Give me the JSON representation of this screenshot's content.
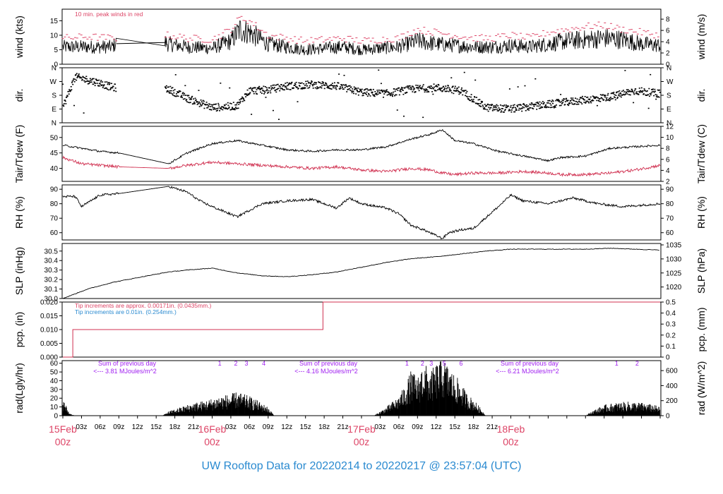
{
  "footer": {
    "title": "UW Rooftop Data for 20220214  to  20220217 @ 23:57:04  (UTC)"
  },
  "colors": {
    "accent": "#dd4466",
    "blue": "#2a8ad0",
    "purple": "#a020f0",
    "trace": "#000000",
    "red_trace": "#d03050"
  },
  "x_axis": {
    "hour_ticks": [
      "03z",
      "06z",
      "09z",
      "12z",
      "15z",
      "18z",
      "21z",
      "03z",
      "06z",
      "09z",
      "12z",
      "15z",
      "18z",
      "21z",
      "03z",
      "06z",
      "09z",
      "12z",
      "15z",
      "18z",
      "21z"
    ],
    "day_ticks": [
      {
        "date": "15Feb",
        "hour": "00z"
      },
      {
        "date": "16Feb",
        "hour": "00z"
      },
      {
        "date": "17Feb",
        "hour": "00z"
      },
      {
        "date": "18Feb",
        "hour": "00z"
      }
    ]
  },
  "chart_data": [
    {
      "type": "line",
      "id": "wind",
      "ylabel": "wind (kts)",
      "ylabel_right": "wind (m/s)",
      "ylim": [
        0,
        19
      ],
      "yticks": [
        0,
        5,
        10,
        15
      ],
      "ylim_right": [
        0,
        9.77
      ],
      "yticks_right": [
        0,
        2,
        4,
        6,
        8
      ],
      "annotation": "10 min. peak winds in red",
      "series": [
        {
          "name": "wind",
          "x_hours": [
            0,
            4,
            8,
            8.5,
            16.5,
            17,
            20,
            24,
            27,
            28.5,
            30,
            33,
            36,
            39,
            42,
            45,
            48,
            51,
            54,
            57,
            60,
            63,
            66,
            69,
            72,
            75,
            78,
            81,
            84,
            87,
            90,
            93,
            96
          ],
          "values": [
            6,
            6,
            6,
            7.2,
            7.5,
            7,
            6,
            5.5,
            8,
            12,
            11,
            7,
            6,
            5,
            5.5,
            6,
            5,
            5.5,
            6,
            8,
            7,
            6.5,
            6,
            6,
            6.5,
            6,
            7,
            8,
            8.5,
            9,
            8.5,
            7,
            6.5
          ]
        },
        {
          "name": "10 min. peak winds",
          "x_hours": [
            0,
            4,
            8,
            17,
            20,
            24,
            27,
            28.5,
            30,
            33,
            36,
            39,
            42,
            45,
            48,
            51,
            54,
            57,
            60,
            63,
            66,
            69,
            72,
            75,
            78,
            81,
            84,
            87,
            90,
            93,
            96
          ],
          "values": [
            9,
            9.5,
            9,
            10,
            9,
            8.5,
            12,
            16,
            15,
            10,
            9,
            8,
            8.5,
            9,
            8,
            8.5,
            9,
            12,
            11,
            10,
            9,
            9,
            10,
            9,
            11,
            12,
            13,
            13.5,
            12,
            11,
            10
          ]
        }
      ]
    },
    {
      "type": "scatter",
      "id": "dir",
      "ylabel": "dir.",
      "ylabel_right": "dir.",
      "ylim": [
        0,
        360
      ],
      "ytick_labels": [
        "N",
        "E",
        "S",
        "W",
        "N"
      ],
      "ytick_values": [
        0,
        90,
        180,
        270,
        360
      ],
      "series": [
        {
          "name": "direction (deg)",
          "x_hours": [
            0,
            2,
            4,
            6,
            8,
            17,
            20,
            24,
            28,
            30,
            33,
            36,
            40,
            44,
            48,
            52,
            56,
            60,
            64,
            68,
            72,
            76,
            80,
            84,
            88,
            92,
            96
          ],
          "values": [
            100,
            300,
            280,
            260,
            230,
            220,
            160,
            100,
            110,
            210,
            215,
            240,
            250,
            240,
            200,
            190,
            220,
            230,
            210,
            100,
            90,
            110,
            130,
            150,
            170,
            210,
            190
          ]
        }
      ]
    },
    {
      "type": "line",
      "id": "temp",
      "ylabel": "Tair/Tdew (F)",
      "ylabel_right": "Tair/Tdew (C)",
      "ylim": [
        35.8,
        53.6
      ],
      "yticks": [
        40,
        45,
        50
      ],
      "ylim_right": [
        2,
        12
      ],
      "yticks_right": [
        2,
        4,
        6,
        8,
        10,
        12
      ],
      "series": [
        {
          "name": "Tair",
          "x_hours": [
            0,
            3,
            6,
            9,
            17,
            20,
            24,
            28,
            32,
            36,
            40,
            44,
            48,
            52,
            56,
            59,
            61,
            63,
            66,
            70,
            74,
            78,
            80,
            84,
            88,
            92,
            96
          ],
          "values": [
            47.5,
            46.5,
            45.5,
            45,
            41.5,
            45,
            48,
            49,
            47.5,
            46,
            45.5,
            46,
            46,
            47,
            49.5,
            51,
            52.5,
            49,
            48,
            45.5,
            44,
            42.5,
            43.5,
            44,
            46.5,
            47,
            47.5
          ]
        },
        {
          "name": "Tdew",
          "x_hours": [
            0,
            3,
            6,
            9,
            17,
            20,
            24,
            28,
            32,
            36,
            40,
            44,
            48,
            52,
            56,
            59,
            61,
            63,
            66,
            70,
            74,
            78,
            80,
            84,
            88,
            92,
            96
          ],
          "values": [
            43.5,
            41.5,
            41,
            40.5,
            40,
            41,
            42,
            41.5,
            41,
            40.5,
            40,
            40.5,
            39.5,
            39,
            40,
            39.5,
            38.5,
            38,
            38.5,
            38.5,
            39,
            38.5,
            38,
            38,
            38.5,
            39.5,
            41
          ]
        }
      ]
    },
    {
      "type": "line",
      "id": "rh",
      "ylabel": "RH (%)",
      "ylabel_right": "RH (%)",
      "ylim": [
        55,
        93
      ],
      "yticks": [
        60,
        70,
        80,
        90
      ],
      "series": [
        {
          "name": "RH",
          "x_hours": [
            0,
            2,
            3,
            6,
            9,
            17,
            20,
            22,
            24,
            28,
            32,
            36,
            40,
            44,
            46,
            48,
            52,
            54,
            56,
            58,
            60,
            61,
            62,
            64,
            66,
            70,
            72,
            74,
            78,
            82,
            86,
            90,
            96
          ],
          "values": [
            85,
            85,
            78,
            86,
            87,
            92,
            88,
            82,
            78,
            71,
            80,
            82,
            83,
            77,
            84,
            80,
            77,
            73,
            65,
            62,
            58,
            56,
            60,
            62,
            63,
            78,
            86,
            82,
            80,
            84,
            80,
            78,
            80
          ]
        }
      ]
    },
    {
      "type": "line",
      "id": "slp",
      "ylabel": "SLP (inHg)",
      "ylabel_right": "SLP (hPa)",
      "ylim": [
        30.0,
        30.58
      ],
      "yticks": [
        30.0,
        30.1,
        30.2,
        30.3,
        30.4,
        30.5
      ],
      "ylim_right": [
        1015.9,
        1035.5
      ],
      "yticks_right": [
        1020,
        1025,
        1030,
        1035
      ],
      "series": [
        {
          "name": "SLP",
          "x_hours": [
            0,
            4,
            8,
            12,
            17,
            20,
            24,
            28,
            32,
            36,
            40,
            44,
            48,
            52,
            56,
            60,
            64,
            68,
            72,
            76,
            80,
            84,
            88,
            92,
            96
          ],
          "values": [
            30.0,
            30.1,
            30.17,
            30.22,
            30.28,
            30.3,
            30.32,
            30.27,
            30.24,
            30.23,
            30.25,
            30.28,
            30.33,
            30.38,
            30.42,
            30.44,
            30.47,
            30.5,
            30.52,
            30.52,
            30.52,
            30.52,
            30.53,
            30.52,
            30.51
          ]
        }
      ]
    },
    {
      "type": "line",
      "id": "pcp",
      "ylabel": "pcp. (in)",
      "ylabel_right": "pcp. (mm)",
      "ylim": [
        0,
        0.02
      ],
      "yticks": [
        0.0,
        0.005,
        0.01,
        0.015,
        0.02
      ],
      "yticks_right": [
        0,
        0.1,
        0.2,
        0.3,
        0.4,
        0.5
      ],
      "annotations": [
        "Tip increments are approx. 0.00171in. (0.0435mm.)",
        "Tip increments are 0.01in. (0.254mm.)"
      ],
      "series": [
        {
          "name": "pcp",
          "x_hours": [
            0,
            1.6,
            1.6,
            41.8,
            41.8,
            96
          ],
          "values": [
            0,
            0,
            0.01,
            0.01,
            0.02,
            0.02
          ]
        }
      ]
    },
    {
      "type": "area",
      "id": "rad",
      "ylabel": "rad(Lgly/hr)",
      "ylabel_right": "rad (W/m^2)",
      "ylim": [
        0,
        63
      ],
      "yticks": [
        0,
        10,
        20,
        30,
        40,
        50,
        60
      ],
      "ylim_right": [
        0,
        733
      ],
      "yticks_right": [
        0,
        200,
        400,
        600
      ],
      "day_sums": [
        {
          "text": "Sum of previous day",
          "value": "<--- 3.81 MJoules/m^2"
        },
        {
          "text": "Sum of previous day",
          "value": "<--- 4.16 MJoules/m^2"
        },
        {
          "text": "Sum of previous day",
          "value": "<--- 6.21 MJoules/m^2"
        }
      ],
      "markers": [
        {
          "label": "1",
          "x_hour": 25.2
        },
        {
          "label": "2",
          "x_hour": 27.8
        },
        {
          "label": "3",
          "x_hour": 29.5
        },
        {
          "label": "4",
          "x_hour": 32.3
        },
        {
          "label": "1",
          "x_hour": 55.3
        },
        {
          "label": "2",
          "x_hour": 57.8
        },
        {
          "label": "3",
          "x_hour": 59.2
        },
        {
          "label": "5",
          "x_hour": 61.3
        },
        {
          "label": "6",
          "x_hour": 64.0
        },
        {
          "label": "1",
          "x_hour": 89.0
        },
        {
          "label": "2",
          "x_hour": 92.3
        }
      ],
      "series": [
        {
          "name": "rad",
          "x_hours": [
            0,
            0.5,
            1,
            1.5,
            2,
            2.5,
            16,
            17,
            19,
            21,
            23,
            25,
            27,
            28,
            30,
            31,
            33,
            34,
            50,
            52,
            54,
            55,
            56,
            57,
            58,
            59,
            60,
            61,
            62,
            63,
            64,
            65,
            66,
            67,
            68,
            84,
            85,
            87,
            89,
            91,
            93,
            95,
            96
          ],
          "values": [
            15,
            10,
            3,
            1,
            0,
            0,
            0,
            4,
            8,
            12,
            14,
            18,
            20,
            22,
            18,
            15,
            8,
            0,
            0,
            8,
            18,
            28,
            42,
            35,
            50,
            40,
            48,
            55,
            45,
            38,
            30,
            20,
            15,
            8,
            0,
            0,
            4,
            10,
            12,
            13,
            12,
            10,
            8
          ]
        }
      ]
    }
  ]
}
